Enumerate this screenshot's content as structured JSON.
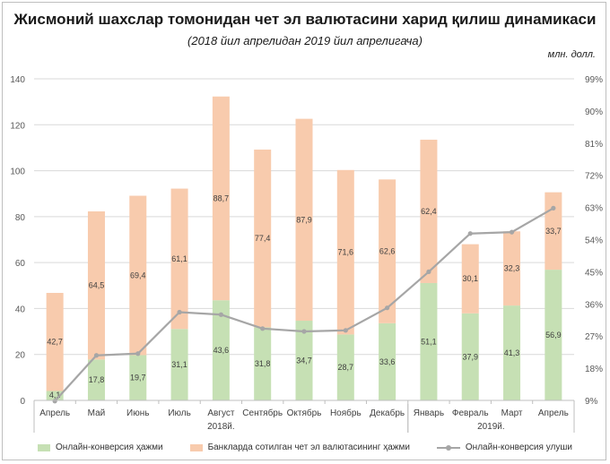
{
  "chart_data": {
    "type": "bar",
    "title": "Жисмоний шахслар томонидан чет эл валютасини харид қилиш динамикаси",
    "subtitle": "(2018 йил апрелидан 2019 йил апрелигача)",
    "unit_label": "млн. долл.",
    "categories": [
      "Апрель",
      "Май",
      "Июнь",
      "Июль",
      "Август",
      "Сентябрь",
      "Октябрь",
      "Ноябрь",
      "Декабрь",
      "Январь",
      "Февраль",
      "Март",
      "Апрель"
    ],
    "year_groups": [
      {
        "label": "2018й.",
        "from": 0,
        "to": 8
      },
      {
        "label": "2019й.",
        "from": 9,
        "to": 12
      }
    ],
    "series": [
      {
        "name": "Онлайн-конверсия ҳажми",
        "type": "bar",
        "color": "#c6e0b4",
        "values": [
          4.1,
          17.8,
          19.7,
          31.1,
          43.6,
          31.8,
          34.7,
          28.7,
          33.6,
          51.1,
          37.9,
          41.3,
          56.9
        ],
        "labels": [
          "4,1",
          "17,8",
          "19,7",
          "31,1",
          "43,6",
          "31,8",
          "34,7",
          "28,7",
          "33,6",
          "51,1",
          "37,9",
          "41,3",
          "56,9"
        ]
      },
      {
        "name": "Банкларда сотилган чет эл валютасининг ҳажми",
        "type": "bar",
        "color": "#f8cbad",
        "values": [
          42.7,
          64.5,
          69.4,
          61.1,
          88.7,
          77.4,
          87.9,
          71.6,
          62.6,
          62.4,
          30.1,
          32.3,
          33.7
        ],
        "labels": [
          "42,7",
          "64,5",
          "69,4",
          "61,1",
          "88,7",
          "77,4",
          "87,9",
          "71,6",
          "62,6",
          "62,4",
          "30,1",
          "32,3",
          "33,7"
        ]
      },
      {
        "name": "Онлайн-конверсия улуши",
        "type": "line",
        "color": "#a6a6a6",
        "axis": "right",
        "values": [
          8.8,
          21.6,
          22.1,
          33.7,
          33.0,
          29.1,
          28.3,
          28.6,
          34.9,
          45.0,
          55.7,
          56.1,
          62.8
        ]
      }
    ],
    "ylim": [
      0,
      140
    ],
    "yticks": [
      "0",
      "20",
      "40",
      "60",
      "80",
      "100",
      "120",
      "140"
    ],
    "y2lim": [
      9,
      99
    ],
    "y2ticks": [
      "9%",
      "18%",
      "27%",
      "36%",
      "45%",
      "54%",
      "63%",
      "72%",
      "81%",
      "90%",
      "99%"
    ],
    "colors": {
      "bar_online": "#c6e0b4",
      "bar_bank": "#f8cbad",
      "line": "#a6a6a6"
    }
  }
}
